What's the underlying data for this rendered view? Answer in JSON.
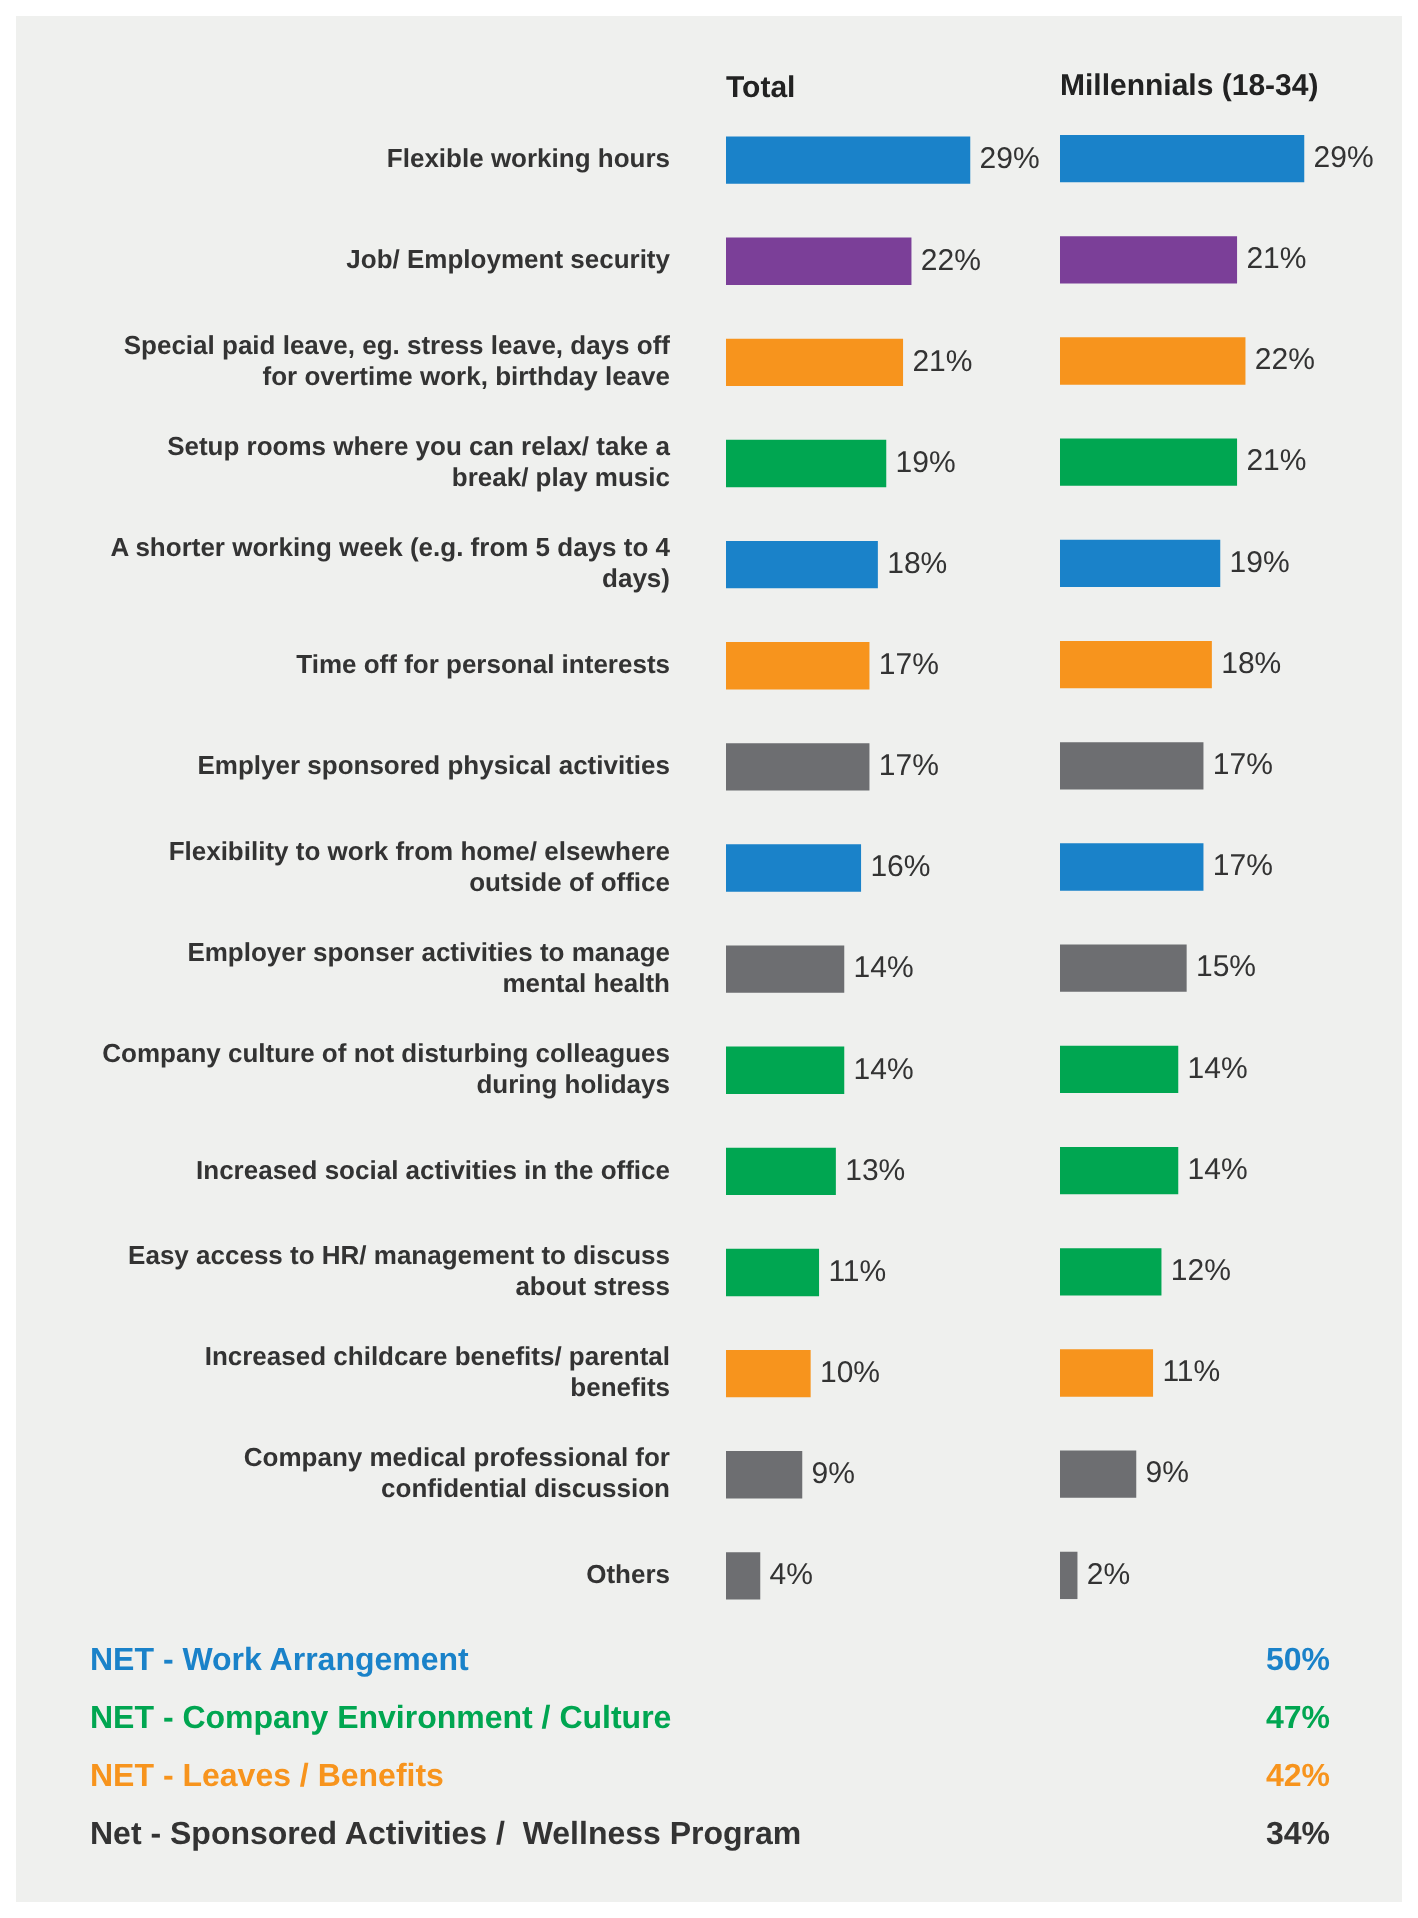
{
  "chart_data": [
    {
      "type": "bar",
      "orientation": "horizontal",
      "title": "Total",
      "tick_labels": "y",
      "categories": [
        "Flexible working hours",
        "Job/ Employment security",
        "Special paid leave, eg. stress leave, days off for overtime work, birthday leave",
        "Setup rooms where you can relax/ take a break/ play music",
        "A shorter working week (e.g. from 5 days to 4 days)",
        "Time off for personal interests",
        "Emplyer sponsored physical activities",
        "Flexibility to work from home/ elsewhere outside of office",
        "Employer sponser activities to manage mental health",
        "Company culture of not disturbing colleagues during holidays",
        "Increased social activities in the office",
        "Easy access to HR/ management to discuss about stress",
        "Increased childcare benefits/ parental benefits",
        "Company medical professional for confidential discussion",
        "Others"
      ],
      "values": [
        29,
        22,
        21,
        19,
        18,
        17,
        17,
        16,
        14,
        14,
        13,
        11,
        10,
        9,
        4
      ],
      "value_labels": [
        "29%",
        "22%",
        "21%",
        "19%",
        "18%",
        "17%",
        "17%",
        "16%",
        "14%",
        "14%",
        "13%",
        "11%",
        "10%",
        "9%",
        "4%"
      ],
      "colors": [
        "#1a82c9",
        "#7b3f98",
        "#f7941d",
        "#00a651",
        "#1a82c9",
        "#f7941d",
        "#6d6e71",
        "#1a82c9",
        "#6d6e71",
        "#00a651",
        "#00a651",
        "#00a651",
        "#f7941d",
        "#6d6e71",
        "#6d6e71"
      ]
    },
    {
      "type": "bar",
      "orientation": "horizontal",
      "title": "Millennials (18-34)",
      "tick_labels": false,
      "categories": [
        null,
        null,
        null,
        null,
        null,
        null,
        null,
        null,
        null,
        null,
        null,
        null,
        null,
        null,
        null
      ],
      "values": [
        29,
        21,
        22,
        21,
        19,
        18,
        17,
        17,
        15,
        14,
        14,
        12,
        11,
        9,
        2
      ],
      "value_labels": [
        "29%",
        "21%",
        "22%",
        "21%",
        "19%",
        "18%",
        "17%",
        "17%",
        "15%",
        "14%",
        "14%",
        "12%",
        "11%",
        "9%",
        "2%"
      ],
      "colors": [
        "#1a82c9",
        "#7b3f98",
        "#f7941d",
        "#00a651",
        "#1a82c9",
        "#f7941d",
        "#6d6e71",
        "#1a82c9",
        "#6d6e71",
        "#00a651",
        "#00a651",
        "#00a651",
        "#f7941d",
        "#6d6e71",
        "#6d6e71"
      ]
    },
    {
      "type": "other",
      "categories": [
        "NET - Work Arrangement",
        "NET - Company Environment / Culture",
        "NET - Leaves / Benefits",
        "Net - Sponsored Activities /  Wellness Program"
      ],
      "value_labels": [
        "50%",
        "47%",
        "42%",
        "34%"
      ],
      "colors": [
        "#1a82c9",
        "#00a651",
        "#f7941d",
        "#333333"
      ]
    }
  ]
}
